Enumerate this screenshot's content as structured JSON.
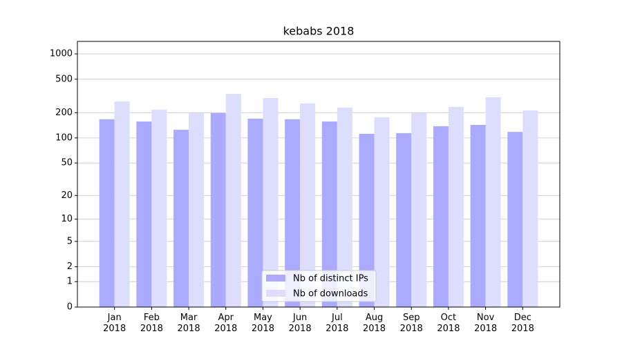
{
  "chart_data": {
    "type": "bar",
    "title": "kebabs 2018",
    "categories": [
      "Jan\n2018",
      "Feb\n2018",
      "Mar\n2018",
      "Apr\n2018",
      "May\n2018",
      "Jun\n2018",
      "Jul\n2018",
      "Aug\n2018",
      "Sep\n2018",
      "Oct\n2018",
      "Nov\n2018",
      "Dec\n2018"
    ],
    "series": [
      {
        "name": "Nb of distinct IPs",
        "color": "#aaaaff",
        "values": [
          167,
          157,
          125,
          198,
          170,
          167,
          157,
          112,
          114,
          138,
          143,
          118
        ]
      },
      {
        "name": "Nb of downloads",
        "color": "#ddddff",
        "values": [
          272,
          217,
          198,
          335,
          299,
          258,
          230,
          176,
          198,
          234,
          305,
          213
        ]
      }
    ],
    "yscale": "log1p",
    "ylim": [
      0,
      1405
    ],
    "yticks": [
      0,
      1,
      2,
      5,
      10,
      20,
      50,
      100,
      200,
      500,
      1000
    ],
    "grid": true,
    "legend": "lower center"
  }
}
